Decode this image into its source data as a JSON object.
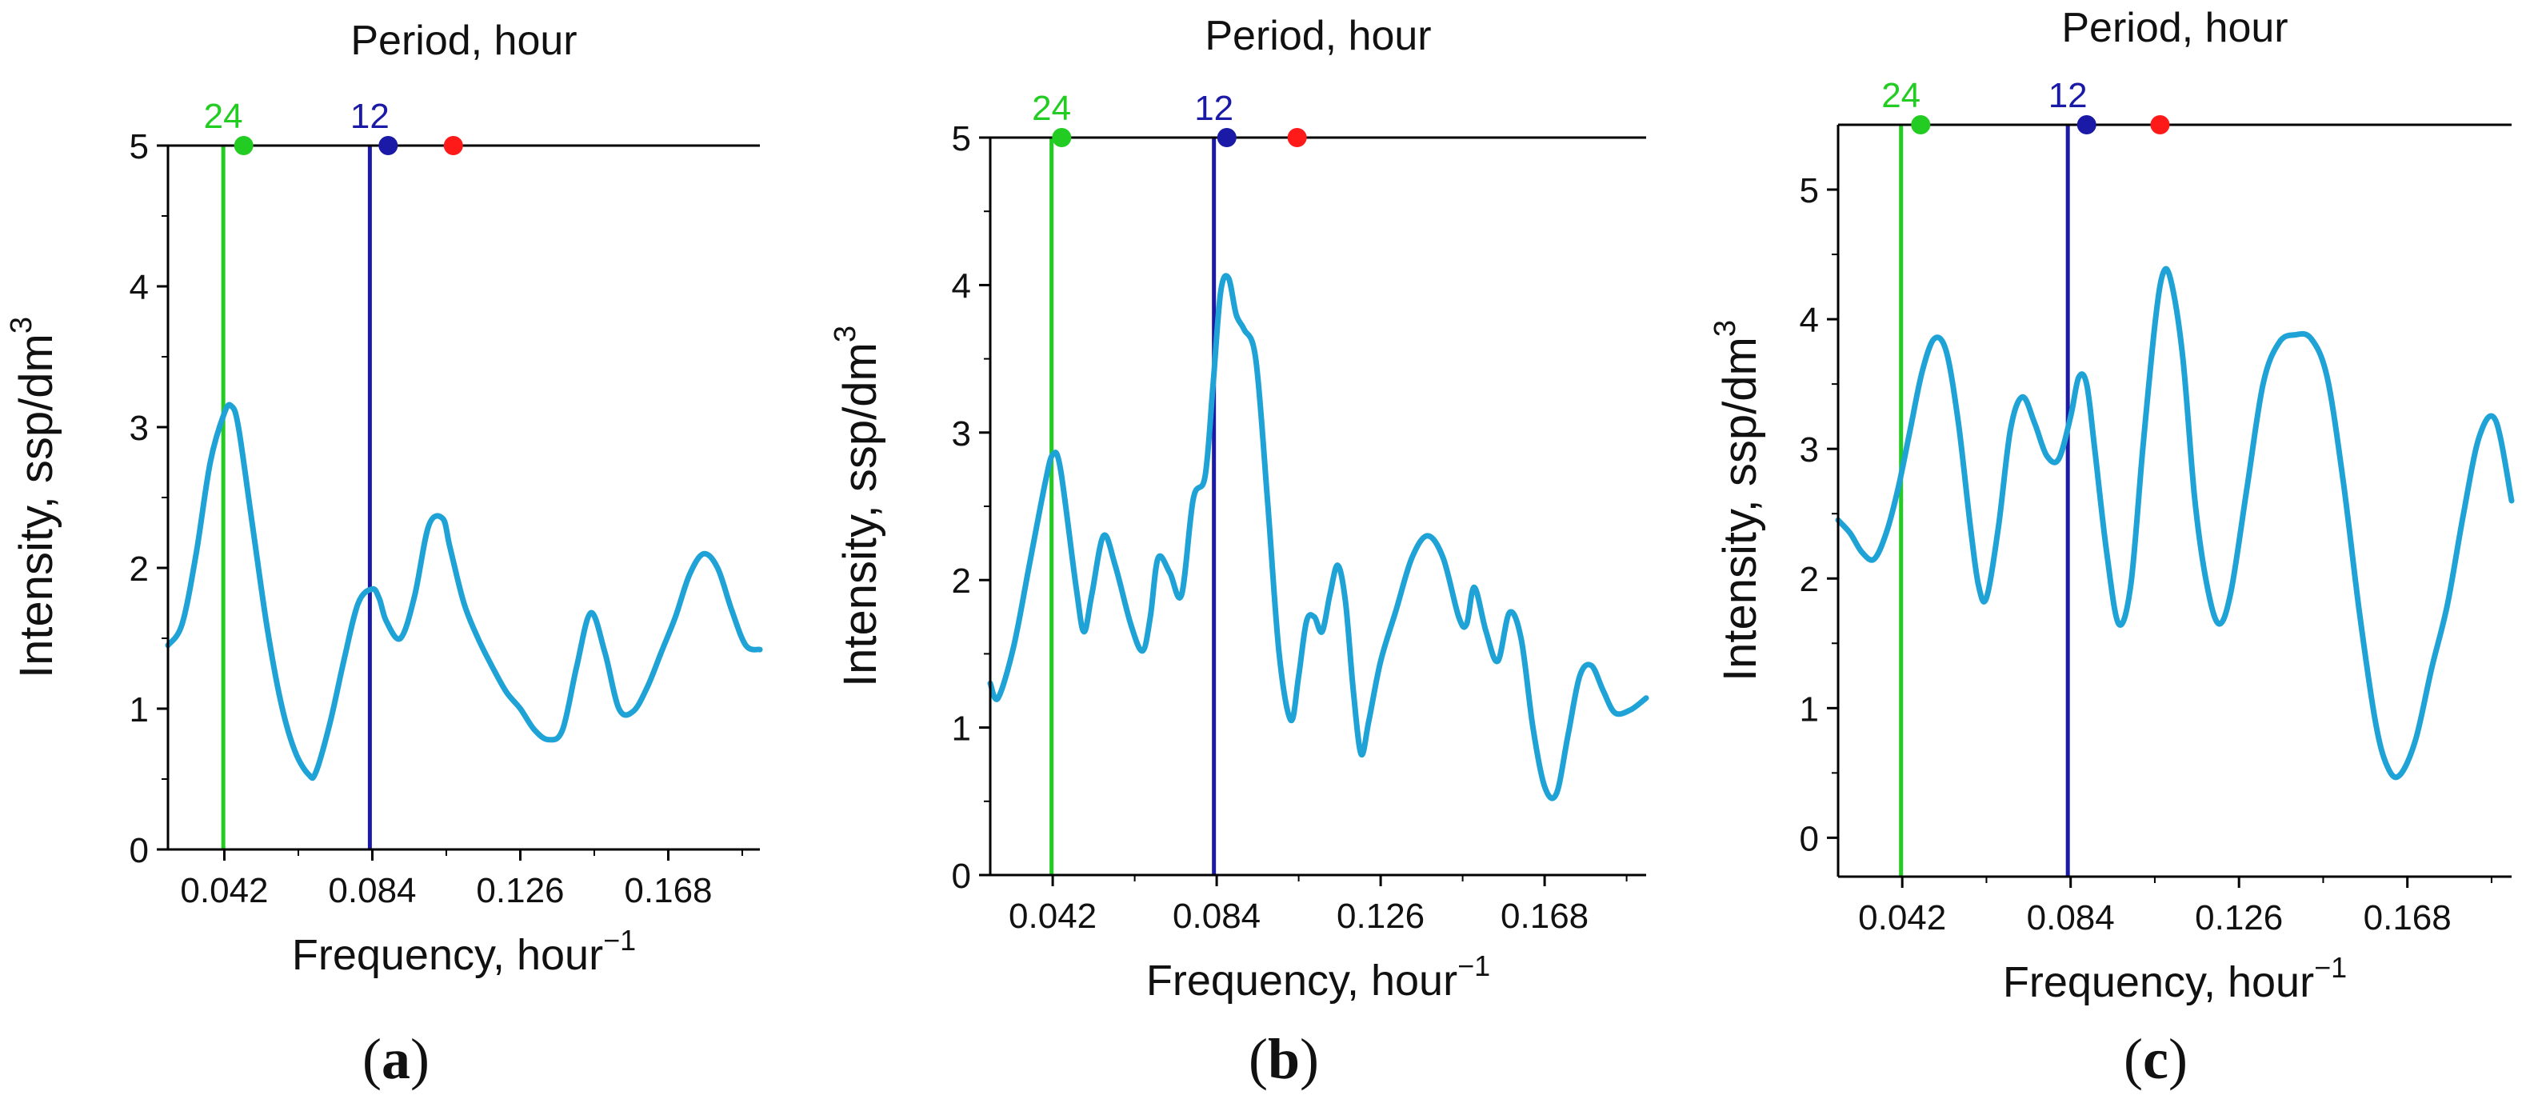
{
  "figure": {
    "panel_labels": [
      "(a)",
      "(b)",
      "(c)"
    ]
  },
  "style": {
    "curve_color": "#1fa3d6",
    "green": "#22cc22",
    "blue": "#1a1aa6",
    "red": "#ff1a1a",
    "axis_color": "#000000"
  },
  "chart_data": [
    {
      "type": "line",
      "panel": "(a)",
      "top_title": "Period, hour",
      "xlabel": "Frequency, hour",
      "xlabel_superscript": "−1",
      "ylabel": "Intensity, ssp/dm",
      "ylabel_superscript": "3",
      "xlim": [
        0.026,
        0.194
      ],
      "ylim": [
        0,
        5
      ],
      "xticks": [
        0.042,
        0.084,
        0.126,
        0.168
      ],
      "xtick_labels": [
        "0.042",
        "0.084",
        "0.126",
        "0.168"
      ],
      "yticks": [
        0,
        1,
        2,
        3,
        4,
        5
      ],
      "ytick_labels": [
        "0",
        "1",
        "2",
        "3",
        "4",
        "5"
      ],
      "period_markers": [
        {
          "label": "24",
          "freq": 0.0417,
          "color_key": "green",
          "dot_x": 0.0475
        },
        {
          "label": "12",
          "freq": 0.0833,
          "color_key": "blue",
          "dot_x": 0.0885
        },
        {
          "label": "",
          "freq": null,
          "color_key": "red",
          "dot_x": 0.107
        }
      ],
      "series": [
        {
          "name": "spectrum",
          "x": [
            0.026,
            0.03,
            0.034,
            0.038,
            0.042,
            0.044,
            0.046,
            0.05,
            0.054,
            0.058,
            0.062,
            0.066,
            0.068,
            0.072,
            0.076,
            0.08,
            0.084,
            0.086,
            0.088,
            0.092,
            0.096,
            0.1,
            0.104,
            0.106,
            0.11,
            0.114,
            0.118,
            0.122,
            0.126,
            0.13,
            0.134,
            0.138,
            0.142,
            0.146,
            0.15,
            0.154,
            0.158,
            0.162,
            0.166,
            0.17,
            0.174,
            0.178,
            0.182,
            0.186,
            0.19,
            0.194
          ],
          "y": [
            1.45,
            1.6,
            2.1,
            2.75,
            3.1,
            3.15,
            3.0,
            2.3,
            1.6,
            1.05,
            0.7,
            0.53,
            0.55,
            0.9,
            1.35,
            1.75,
            1.85,
            1.78,
            1.62,
            1.5,
            1.8,
            2.3,
            2.35,
            2.15,
            1.75,
            1.5,
            1.3,
            1.12,
            1.0,
            0.85,
            0.78,
            0.85,
            1.3,
            1.68,
            1.4,
            1.0,
            0.98,
            1.15,
            1.4,
            1.65,
            1.95,
            2.1,
            2.0,
            1.7,
            1.45,
            1.42
          ]
        }
      ]
    },
    {
      "type": "line",
      "panel": "(b)",
      "top_title": "Period, hour",
      "xlabel": "Frequency, hour",
      "xlabel_superscript": "−1",
      "ylabel": "Intensity, ssp/dm",
      "ylabel_superscript": "3",
      "xlim": [
        0.026,
        0.194
      ],
      "ylim": [
        0,
        5
      ],
      "xticks": [
        0.042,
        0.084,
        0.126,
        0.168
      ],
      "xtick_labels": [
        "0.042",
        "0.084",
        "0.126",
        "0.168"
      ],
      "yticks": [
        0,
        1,
        2,
        3,
        4,
        5
      ],
      "ytick_labels": [
        "0",
        "1",
        "2",
        "3",
        "4",
        "5"
      ],
      "period_markers": [
        {
          "label": "24",
          "freq": 0.0417,
          "color_key": "green",
          "dot_x": 0.0443
        },
        {
          "label": "12",
          "freq": 0.0833,
          "color_key": "blue",
          "dot_x": 0.0866
        },
        {
          "label": "",
          "freq": null,
          "color_key": "red",
          "dot_x": 0.1046
        }
      ],
      "series": [
        {
          "name": "spectrum",
          "x": [
            0.026,
            0.028,
            0.032,
            0.036,
            0.04,
            0.042,
            0.044,
            0.048,
            0.05,
            0.052,
            0.055,
            0.058,
            0.062,
            0.065,
            0.067,
            0.069,
            0.072,
            0.075,
            0.078,
            0.081,
            0.083,
            0.085,
            0.087,
            0.089,
            0.091,
            0.094,
            0.097,
            0.1,
            0.103,
            0.105,
            0.107,
            0.109,
            0.111,
            0.113,
            0.115,
            0.117,
            0.119,
            0.121,
            0.123,
            0.126,
            0.13,
            0.134,
            0.138,
            0.142,
            0.146,
            0.148,
            0.15,
            0.153,
            0.156,
            0.159,
            0.162,
            0.165,
            0.168,
            0.171,
            0.174,
            0.177,
            0.18,
            0.183,
            0.186,
            0.19,
            0.194
          ],
          "y": [
            1.3,
            1.2,
            1.55,
            2.1,
            2.65,
            2.85,
            2.75,
            1.95,
            1.65,
            1.9,
            2.3,
            2.1,
            1.7,
            1.52,
            1.75,
            2.15,
            2.05,
            1.9,
            2.55,
            2.7,
            3.3,
            3.95,
            4.05,
            3.8,
            3.7,
            3.5,
            2.55,
            1.5,
            1.05,
            1.35,
            1.72,
            1.75,
            1.65,
            1.9,
            2.1,
            1.85,
            1.25,
            0.82,
            1.05,
            1.45,
            1.8,
            2.15,
            2.3,
            2.15,
            1.75,
            1.7,
            1.95,
            1.65,
            1.45,
            1.78,
            1.6,
            1.0,
            0.6,
            0.55,
            0.95,
            1.35,
            1.42,
            1.25,
            1.1,
            1.12,
            1.2
          ]
        }
      ]
    },
    {
      "type": "line",
      "panel": "(c)",
      "top_title": "Period, hour",
      "xlabel": "Frequency, hour",
      "xlabel_superscript": "−1",
      "ylabel": "Intensity, ssp/dm",
      "ylabel_superscript": "3",
      "xlim": [
        0.026,
        0.194
      ],
      "ylim": [
        -0.3,
        5.5
      ],
      "xticks": [
        0.042,
        0.084,
        0.126,
        0.168
      ],
      "xtick_labels": [
        "0.042",
        "0.084",
        "0.126",
        "0.168"
      ],
      "yticks": [
        0,
        1,
        2,
        3,
        4,
        5
      ],
      "ytick_labels": [
        "0",
        "1",
        "2",
        "3",
        "4",
        "5"
      ],
      "period_markers": [
        {
          "label": "24",
          "freq": 0.0417,
          "color_key": "green",
          "dot_x": 0.0466
        },
        {
          "label": "12",
          "freq": 0.0833,
          "color_key": "blue",
          "dot_x": 0.088
        },
        {
          "label": "",
          "freq": null,
          "color_key": "red",
          "dot_x": 0.1063
        }
      ],
      "series": [
        {
          "name": "spectrum",
          "x": [
            0.026,
            0.029,
            0.032,
            0.035,
            0.038,
            0.041,
            0.044,
            0.047,
            0.05,
            0.053,
            0.056,
            0.059,
            0.061,
            0.063,
            0.066,
            0.069,
            0.072,
            0.075,
            0.078,
            0.081,
            0.084,
            0.086,
            0.088,
            0.09,
            0.093,
            0.096,
            0.099,
            0.102,
            0.105,
            0.107,
            0.109,
            0.112,
            0.115,
            0.118,
            0.121,
            0.124,
            0.128,
            0.132,
            0.136,
            0.14,
            0.144,
            0.148,
            0.152,
            0.156,
            0.16,
            0.163,
            0.166,
            0.17,
            0.174,
            0.178,
            0.182,
            0.186,
            0.19,
            0.194
          ],
          "y": [
            2.45,
            2.35,
            2.2,
            2.15,
            2.35,
            2.7,
            3.15,
            3.6,
            3.85,
            3.75,
            3.2,
            2.4,
            1.95,
            1.85,
            2.4,
            3.15,
            3.4,
            3.2,
            2.95,
            2.92,
            3.25,
            3.55,
            3.5,
            3.0,
            2.2,
            1.65,
            1.95,
            3.0,
            3.95,
            4.35,
            4.3,
            3.7,
            2.6,
            1.95,
            1.65,
            1.9,
            2.7,
            3.5,
            3.82,
            3.88,
            3.85,
            3.55,
            2.75,
            1.75,
            0.9,
            0.55,
            0.48,
            0.75,
            1.3,
            1.8,
            2.5,
            3.1,
            3.22,
            2.6
          ]
        }
      ]
    }
  ]
}
